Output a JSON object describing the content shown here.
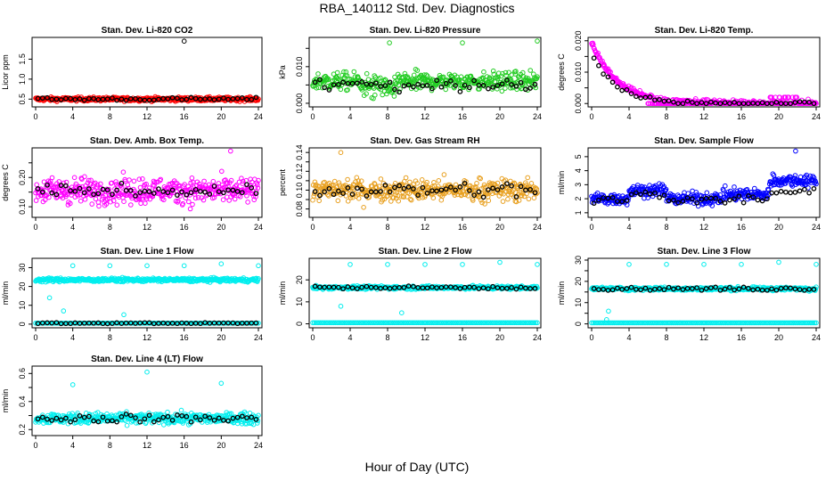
{
  "page": {
    "title": "RBA_140112  Std. Dev. Diagnostics",
    "xlabel": "Hour of Day (UTC)"
  },
  "colors": {
    "red": "#ff0000",
    "green": "#22cc22",
    "magenta": "#ff00ff",
    "orange": "#e8a020",
    "blue": "#0000ff",
    "cyan": "#00eeee",
    "black": "#000000"
  },
  "chart_data": [
    {
      "type": "scatter",
      "title": "Stan. Dev. Li-820 CO2",
      "ylabel": "Licor ppm",
      "xlim": [
        0,
        24
      ],
      "xticks": [
        0,
        4,
        8,
        12,
        16,
        20,
        24
      ],
      "ylim": [
        0.35,
        2.0
      ],
      "yticks": [
        0.5,
        1.0,
        1.5
      ],
      "ytick_labels": [
        "0.5",
        "1.0",
        "1.5"
      ],
      "color": "red",
      "base": 0.5,
      "spread": 0.05,
      "outliers": [
        {
          "x": 16.0,
          "y": 1.95
        }
      ],
      "black_base": 0.5,
      "black_spread": 0.04
    },
    {
      "type": "scatter",
      "title": "Stan. Dev. Li-820 Pressure",
      "ylabel": "kPa",
      "xlim": [
        0,
        24
      ],
      "xticks": [
        0,
        4,
        8,
        12,
        16,
        20,
        24
      ],
      "ylim": [
        -0.0005,
        0.0175
      ],
      "yticks": [
        0.0,
        0.005,
        0.01,
        0.015
      ],
      "ytick_labels": [
        "0.000",
        "",
        "0.010",
        ""
      ],
      "color": "green",
      "base": 0.006,
      "spread": 0.0025,
      "outliers": [
        {
          "x": 8.2,
          "y": 0.0165
        },
        {
          "x": 16.0,
          "y": 0.0165
        },
        {
          "x": 24.0,
          "y": 0.017
        }
      ],
      "black_base": 0.005,
      "black_spread": 0.002
    },
    {
      "type": "scatter",
      "title": "Stan. Dev. Li-820 Temp.",
      "ylabel": "degrees C",
      "xlim": [
        0,
        24
      ],
      "xticks": [
        0,
        4,
        8,
        12,
        16,
        20,
        24
      ],
      "ylim": [
        -0.0005,
        0.0205
      ],
      "yticks": [
        0.0,
        0.005,
        0.01,
        0.015,
        0.02
      ],
      "ytick_labels": [
        "0.000",
        "",
        "0.010",
        "",
        "0.020"
      ],
      "color": "magenta",
      "decay": true,
      "base": 0.0,
      "spread": 0.002,
      "outliers": [],
      "black_base": 0.0,
      "black_spread": 0.001
    },
    {
      "type": "scatter",
      "title": "Stan. Dev. Amb. Box Temp.",
      "ylabel": "degrees C",
      "xlim": [
        0,
        24
      ],
      "xticks": [
        0,
        4,
        8,
        12,
        16,
        20,
        24
      ],
      "ylim": [
        0.07,
        0.295
      ],
      "yticks": [
        0.1,
        0.15,
        0.2,
        0.25
      ],
      "ytick_labels": [
        "0.10",
        "",
        "0.20",
        ""
      ],
      "color": "magenta",
      "base": 0.155,
      "spread": 0.045,
      "outliers": [
        {
          "x": 21.0,
          "y": 0.29
        }
      ],
      "black_base": 0.155,
      "black_spread": 0.02
    },
    {
      "type": "scatter",
      "title": "Stan. Dev. Gas Stream RH",
      "ylabel": "percent",
      "xlim": [
        0,
        24
      ],
      "xticks": [
        0,
        4,
        8,
        12,
        16,
        20,
        24
      ],
      "ylim": [
        0.073,
        0.143
      ],
      "yticks": [
        0.08,
        0.09,
        0.1,
        0.11,
        0.12,
        0.13,
        0.14
      ],
      "ytick_labels": [
        "0.08",
        "",
        "0.10",
        "",
        "0.12",
        "",
        "0.14"
      ],
      "color": "orange",
      "base": 0.1,
      "spread": 0.012,
      "outliers": [
        {
          "x": 3.0,
          "y": 0.14
        }
      ],
      "black_base": 0.1,
      "black_spread": 0.008
    },
    {
      "type": "scatter",
      "title": "Stan. Dev. Sample Flow",
      "ylabel": "ml/min",
      "xlim": [
        0,
        24
      ],
      "xticks": [
        0,
        4,
        8,
        12,
        16,
        20,
        24
      ],
      "ylim": [
        0.8,
        5.5
      ],
      "yticks": [
        1,
        2,
        3,
        4,
        5
      ],
      "ytick_labels": [
        "1",
        "2",
        "3",
        "4",
        "5"
      ],
      "color": "blue",
      "base": 2.0,
      "spread": 0.45,
      "bump": true,
      "outliers": [
        {
          "x": 21.8,
          "y": 5.4
        }
      ],
      "black_base": 1.9,
      "black_spread": 0.3
    },
    {
      "type": "scatter",
      "title": "Stan. Dev. Line 1 Flow",
      "ylabel": "ml/min",
      "xlim": [
        0,
        24
      ],
      "xticks": [
        0,
        4,
        8,
        12,
        16,
        20,
        24
      ],
      "ylim": [
        -1,
        34
      ],
      "yticks": [
        0,
        10,
        20,
        30
      ],
      "ytick_labels": [
        "0",
        "10",
        "20",
        "30"
      ],
      "color": "cyan",
      "base": 23.5,
      "spread": 1.0,
      "zero_band": true,
      "outliers": [
        {
          "x": 4.0,
          "y": 31
        },
        {
          "x": 8.0,
          "y": 31
        },
        {
          "x": 12.0,
          "y": 31
        },
        {
          "x": 16.0,
          "y": 31
        },
        {
          "x": 20.0,
          "y": 32
        },
        {
          "x": 24.0,
          "y": 31
        },
        {
          "x": 1.5,
          "y": 14
        },
        {
          "x": 9.5,
          "y": 5
        },
        {
          "x": 3.0,
          "y": 7
        }
      ],
      "black_base": 0.5,
      "black_spread": 0.3
    },
    {
      "type": "scatter",
      "title": "Stan. Dev. Line 2 Flow",
      "ylabel": "ml/min",
      "xlim": [
        0,
        24
      ],
      "xticks": [
        0,
        4,
        8,
        12,
        16,
        20,
        24
      ],
      "ylim": [
        -1,
        29
      ],
      "yticks": [
        0,
        10,
        20
      ],
      "ytick_labels": [
        "0",
        "10",
        "20"
      ],
      "color": "cyan",
      "base": 16.5,
      "spread": 0.8,
      "zero_band": true,
      "outliers": [
        {
          "x": 4.0,
          "y": 27
        },
        {
          "x": 8.0,
          "y": 27
        },
        {
          "x": 12.0,
          "y": 27
        },
        {
          "x": 16.0,
          "y": 27
        },
        {
          "x": 20.0,
          "y": 28
        },
        {
          "x": 24.0,
          "y": 27
        },
        {
          "x": 9.5,
          "y": 5
        },
        {
          "x": 3.0,
          "y": 8
        }
      ],
      "black_base": 16.5,
      "black_spread": 0.7
    },
    {
      "type": "scatter",
      "title": "Stan. Dev. Line 3 Flow",
      "ylabel": "ml/min",
      "xlim": [
        0,
        24
      ],
      "xticks": [
        0,
        4,
        8,
        12,
        16,
        20,
        24
      ],
      "ylim": [
        -1,
        30
      ],
      "yticks": [
        0,
        5,
        10,
        15,
        20,
        25,
        30
      ],
      "ytick_labels": [
        "0",
        "",
        "10",
        "",
        "20",
        "",
        "30"
      ],
      "color": "cyan",
      "base": 16.5,
      "spread": 0.8,
      "zero_band": true,
      "outliers": [
        {
          "x": 4.0,
          "y": 28
        },
        {
          "x": 8.0,
          "y": 28
        },
        {
          "x": 12.0,
          "y": 28
        },
        {
          "x": 16.0,
          "y": 28
        },
        {
          "x": 20.0,
          "y": 29
        },
        {
          "x": 24.0,
          "y": 28
        },
        {
          "x": 1.8,
          "y": 6
        },
        {
          "x": 1.6,
          "y": 2
        }
      ],
      "black_base": 16.5,
      "black_spread": 0.8
    },
    {
      "type": "scatter",
      "title": "Stan. Dev. Line 4 (LT) Flow",
      "ylabel": "ml/min",
      "xlim": [
        0,
        24
      ],
      "xticks": [
        0,
        4,
        8,
        12,
        16,
        20,
        24
      ],
      "ylim": [
        0.17,
        0.64
      ],
      "yticks": [
        0.2,
        0.3,
        0.4,
        0.5,
        0.6
      ],
      "ytick_labels": [
        "0.2",
        "",
        "0.4",
        "",
        "0.6"
      ],
      "color": "cyan",
      "base": 0.28,
      "spread": 0.04,
      "outliers": [
        {
          "x": 4.0,
          "y": 0.52
        },
        {
          "x": 12.0,
          "y": 0.61
        },
        {
          "x": 20.0,
          "y": 0.53
        }
      ],
      "black_base": 0.28,
      "black_spread": 0.03
    }
  ]
}
